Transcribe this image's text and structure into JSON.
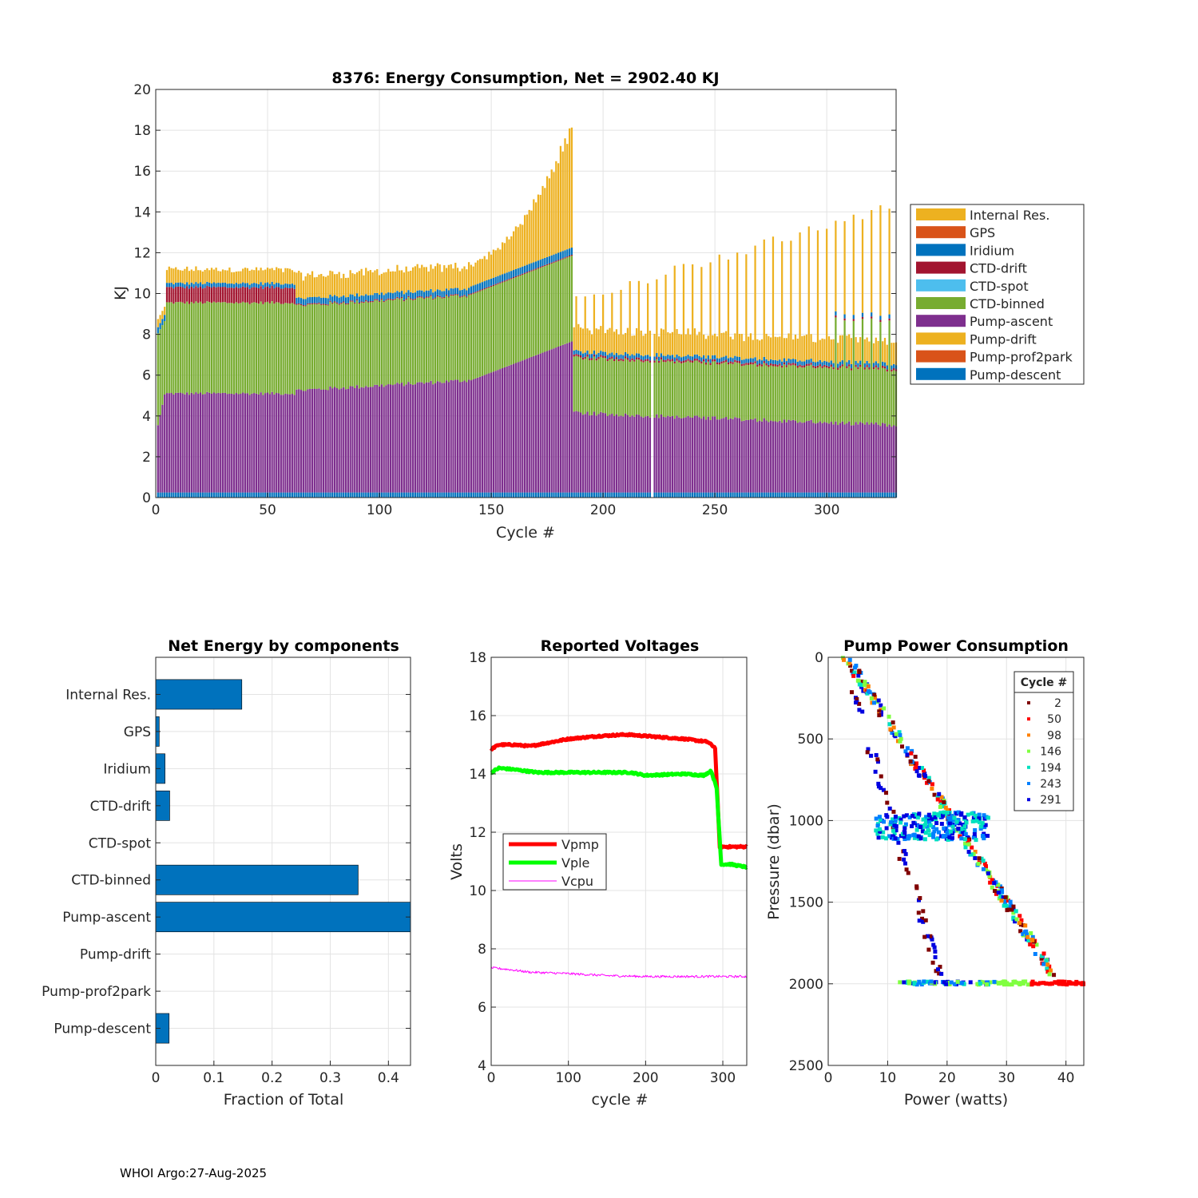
{
  "footer": "WHOI Argo:27-Aug-2025",
  "chart_data": [
    {
      "type": "stacked-bar",
      "title": "8376: Energy Consumption,  Net = 2902.40 KJ",
      "xlabel": "Cycle #",
      "ylabel": "KJ",
      "xlim": [
        0,
        331
      ],
      "ylim": [
        0,
        20
      ],
      "xticks": [
        0,
        50,
        100,
        150,
        200,
        250,
        300
      ],
      "yticks": [
        0,
        2,
        4,
        6,
        8,
        10,
        12,
        14,
        16,
        18,
        20
      ],
      "grid": true,
      "legend_position": "right",
      "legend": [
        "Internal Res.",
        "GPS",
        "Iridium",
        "CTD-drift",
        "CTD-spot",
        "CTD-binned",
        "Pump-ascent",
        "Pump-drift",
        "Pump-prof2park",
        "Pump-descent"
      ],
      "series_colors": {
        "Internal Res.": "#EDB120",
        "GPS": "#D95319",
        "Iridium": "#0072BD",
        "CTD-drift": "#A2142F",
        "CTD-spot": "#4DBEEE",
        "CTD-binned": "#77AC30",
        "Pump-ascent": "#7E2F8E",
        "Pump-drift": "#EDB120",
        "Pump-prof2park": "#D95319",
        "Pump-descent": "#0072BD"
      },
      "approx_profile": {
        "note": "approximate per-cycle totals (KJ) read from figure",
        "segments": [
          {
            "cycles": [
              1,
              4
            ],
            "pump_ascent": 2.8,
            "ctd_binned": 4.8,
            "ctd_drift": 0.0,
            "iridium": 0.3,
            "internal_res": 0.4
          },
          {
            "cycles": [
              5,
              62
            ],
            "pump_ascent": 4.85,
            "ctd_binned": 4.45,
            "ctd_drift": 0.8,
            "iridium": 0.2,
            "internal_res": 0.55
          },
          {
            "cycles": [
              63,
              140
            ],
            "pump_ascent": 5.3,
            "ctd_binned": 4.15,
            "ctd_drift": 0.05,
            "iridium": 0.3,
            "internal_res": 0.9
          },
          {
            "cycles": [
              141,
              186
            ],
            "pump_ascent_start": 5.5,
            "pump_ascent_end": 7.4,
            "ctd_binned_start": 4.2,
            "ctd_binned_end": 4.2,
            "internal_res_start": 1.0,
            "internal_res_end": 6.1
          },
          {
            "cycles": [
              187,
              331
            ],
            "pump_ascent_start": 3.9,
            "pump_ascent_end": 3.3,
            "ctd_binned": 2.7,
            "iridium": 0.2,
            "internal_res": 1.0,
            "spikes_every_4_cycles_to": [
              9.7,
              14.3
            ]
          }
        ]
      }
    },
    {
      "type": "bar-horizontal",
      "title": "Net Energy by components",
      "xlabel": "Fraction of Total",
      "categories": [
        "Internal Res.",
        "GPS",
        "Iridium",
        "CTD-drift",
        "CTD-spot",
        "CTD-binned",
        "Pump-ascent",
        "Pump-drift",
        "Pump-prof2park",
        "Pump-descent"
      ],
      "values": [
        0.148,
        0.006,
        0.016,
        0.024,
        0.0,
        0.348,
        0.438,
        0.0,
        0.0,
        0.023
      ],
      "xlim": [
        0,
        0.438
      ],
      "xticks": [
        "0",
        "0.1",
        "0.2",
        "0.3",
        "0.4"
      ],
      "bar_color": "#0072BD"
    },
    {
      "type": "line",
      "title": "Reported Voltages",
      "xlabel": "cycle #",
      "ylabel": "Volts",
      "xlim": [
        0,
        331
      ],
      "ylim": [
        4,
        18
      ],
      "xticks": [
        "0",
        "100",
        "200",
        "300"
      ],
      "yticks": [
        "4",
        "6",
        "8",
        "10",
        "12",
        "14",
        "16",
        "18"
      ],
      "legend_position": "middle-left",
      "series": [
        {
          "name": "Vpmp",
          "color": "#FF0000",
          "width": "thick",
          "points": [
            [
              0,
              14.85
            ],
            [
              10,
              15.0
            ],
            [
              30,
              15.0
            ],
            [
              50,
              14.95
            ],
            [
              70,
              15.05
            ],
            [
              100,
              15.2
            ],
            [
              140,
              15.3
            ],
            [
              175,
              15.35
            ],
            [
              200,
              15.3
            ],
            [
              250,
              15.2
            ],
            [
              280,
              15.1
            ],
            [
              290,
              14.9
            ],
            [
              296,
              11.5
            ],
            [
              331,
              11.5
            ]
          ]
        },
        {
          "name": "Vple",
          "color": "#00FF00",
          "width": "thick",
          "points": [
            [
              0,
              14.05
            ],
            [
              10,
              14.2
            ],
            [
              30,
              14.15
            ],
            [
              60,
              14.05
            ],
            [
              100,
              14.05
            ],
            [
              180,
              14.05
            ],
            [
              200,
              13.95
            ],
            [
              250,
              14.0
            ],
            [
              275,
              13.95
            ],
            [
              285,
              14.1
            ],
            [
              292,
              13.5
            ],
            [
              298,
              10.9
            ],
            [
              310,
              10.9
            ],
            [
              331,
              10.8
            ]
          ]
        },
        {
          "name": "Vcpu",
          "color": "#FF00FF",
          "width": "thin",
          "points": [
            [
              0,
              7.35
            ],
            [
              20,
              7.3
            ],
            [
              50,
              7.2
            ],
            [
              100,
              7.15
            ],
            [
              150,
              7.08
            ],
            [
              200,
              7.05
            ],
            [
              250,
              7.05
            ],
            [
              300,
              7.05
            ],
            [
              331,
              7.05
            ]
          ]
        }
      ]
    },
    {
      "type": "scatter",
      "title": "Pump Power Consumption",
      "xlabel": "Power (watts)",
      "ylabel": "Pressure (dbar)",
      "xlim": [
        0,
        43
      ],
      "ylim": [
        0,
        2500
      ],
      "y_reversed": true,
      "xticks": [
        "0",
        "10",
        "20",
        "30",
        "40"
      ],
      "yticks": [
        "0",
        "500",
        "1000",
        "1500",
        "2000",
        "2500"
      ],
      "legend_title": "Cycle #",
      "legend_position": "top-right",
      "series": [
        {
          "name": "2",
          "color": "#800000"
        },
        {
          "name": "50",
          "color": "#FF0000"
        },
        {
          "name": "98",
          "color": "#FF8000"
        },
        {
          "name": "146",
          "color": "#80FF40"
        },
        {
          "name": "194",
          "color": "#00E0C0"
        },
        {
          "name": "243",
          "color": "#0080FF"
        },
        {
          "name": "291",
          "color": "#0000E0"
        }
      ],
      "clusters": [
        {
          "desc": "descending diagonal (profile)",
          "from": [
            3,
            0
          ],
          "to": [
            38,
            1950
          ]
        },
        {
          "desc": "park-depth band",
          "from": [
            12,
            2000
          ],
          "to": [
            43,
            2010
          ]
        },
        {
          "desc": "cluster near 1000-1100 dbar",
          "from": [
            8,
            1000
          ],
          "to": [
            27,
            1150
          ]
        }
      ]
    }
  ]
}
